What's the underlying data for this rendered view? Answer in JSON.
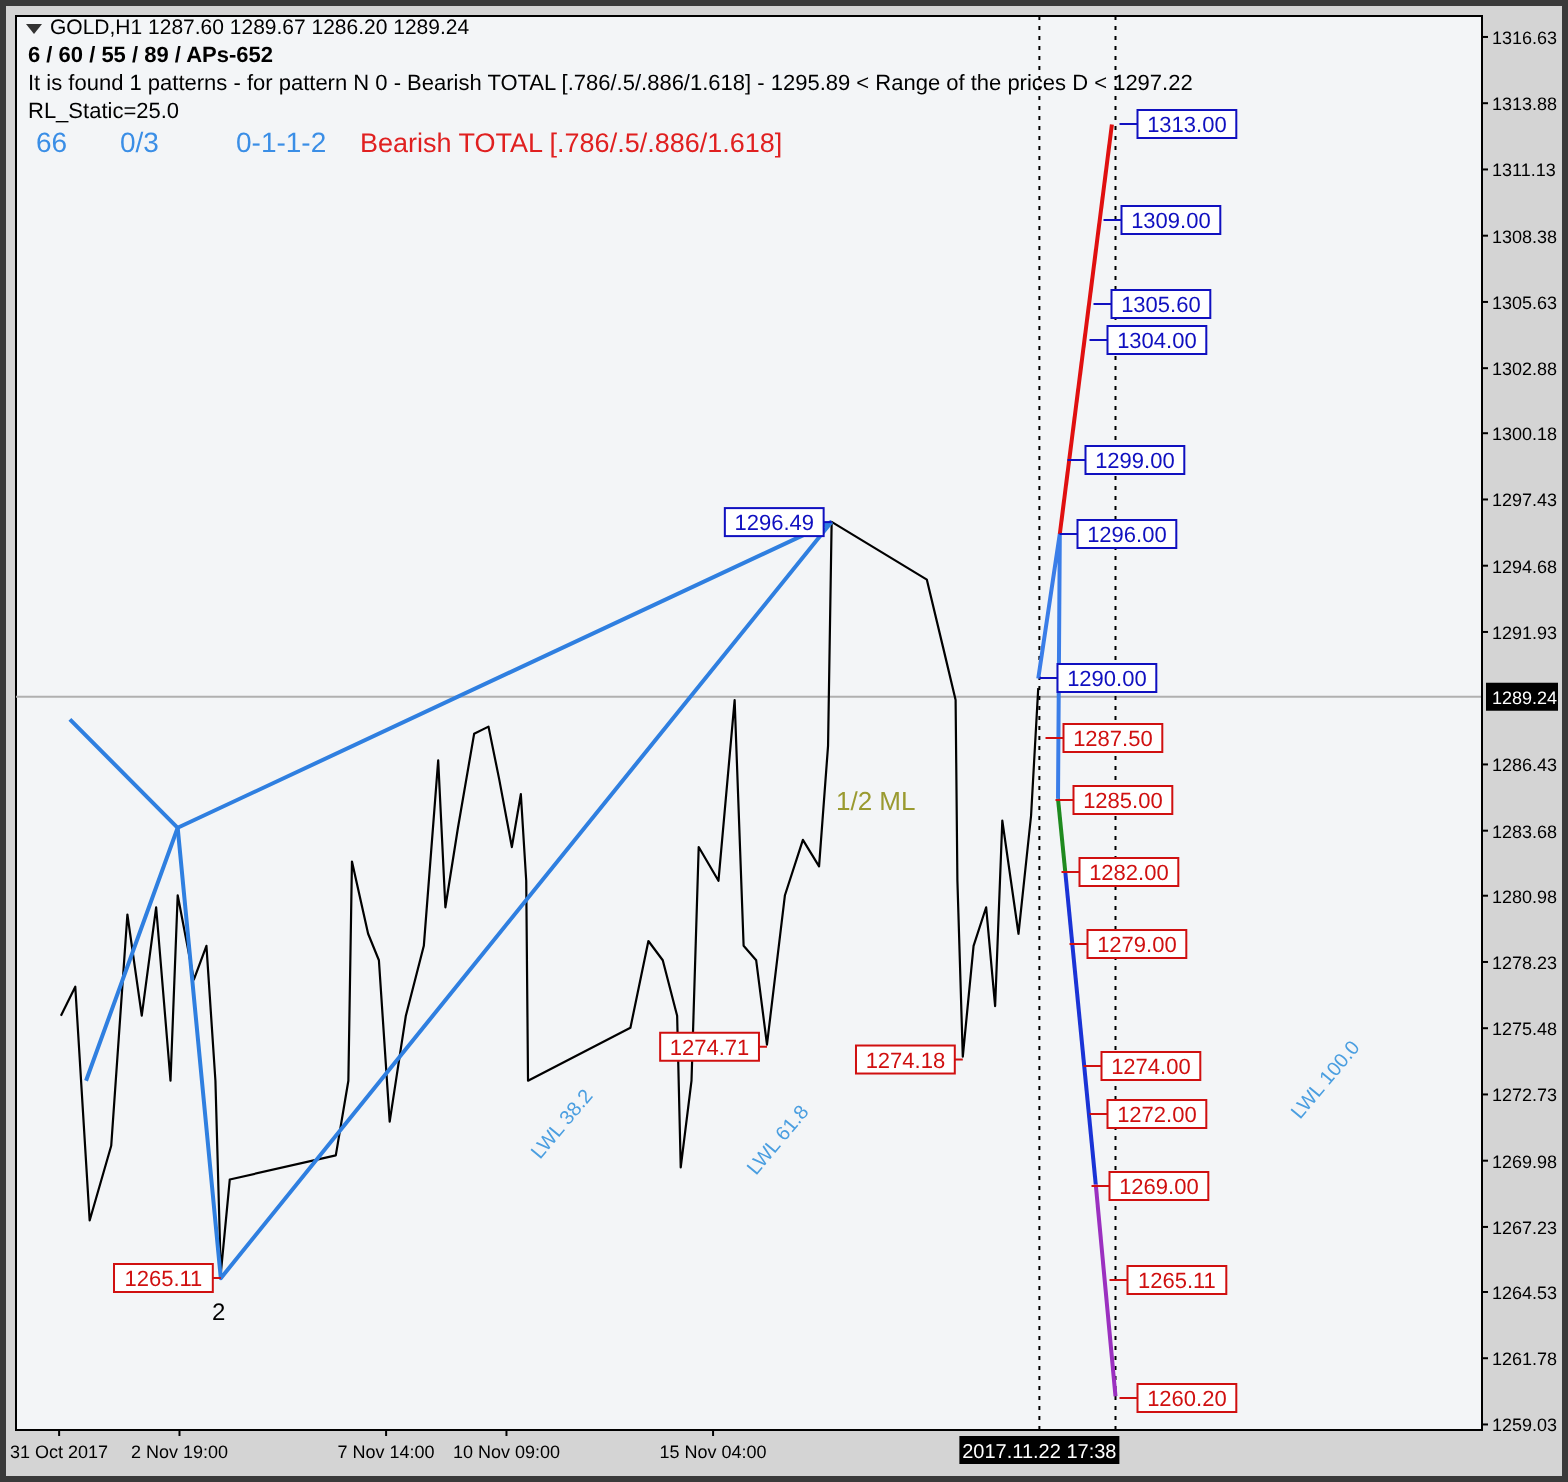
{
  "chart_data": {
    "type": "line",
    "title": "GOLD,H1  1287.60 1289.67 1286.20 1289.24",
    "subtitle": "6 / 60 / 55 / 89 / APs-652",
    "xlim": [
      "2017-10-30T00:00",
      "2017-12-03T00:00"
    ],
    "ylim": [
      1258.8,
      1317.5
    ],
    "xticks": [
      {
        "value": "2017-10-31T00:00",
        "label": "31 Oct 2017"
      },
      {
        "value": "2017-11-02T19:00",
        "label": "2 Nov 19:00"
      },
      {
        "value": "2017-11-07T14:00",
        "label": "7 Nov 14:00"
      },
      {
        "value": "2017-11-10T09:00",
        "label": "10 Nov 09:00"
      },
      {
        "value": "2017-11-15T04:00",
        "label": "15 Nov 04:00"
      }
    ],
    "yticks": [
      1259.03,
      1261.78,
      1264.53,
      1267.23,
      1269.98,
      1272.73,
      1275.48,
      1278.23,
      1280.98,
      1283.68,
      1286.43,
      1291.93,
      1294.68,
      1297.43,
      1300.18,
      1302.88,
      1305.63,
      1308.38,
      1311.13,
      1313.88,
      1316.63
    ],
    "grid": false,
    "series": [
      {
        "color": "#000000",
        "x": [
          "2017-10-31T01:00",
          "2017-10-31T09:00",
          "2017-10-31T17:00",
          "2017-11-01T05:00",
          "2017-11-01T14:00",
          "2017-11-01T22:00",
          "2017-11-02T06:00",
          "2017-11-02T14:00",
          "2017-11-02T18:00",
          "2017-11-03T03:00",
          "2017-11-03T10:00",
          "2017-11-03T15:00",
          "2017-11-03T18:00",
          "2017-11-03T23:00",
          "2017-11-06T10:00",
          "2017-11-06T17:00",
          "2017-11-06T19:00",
          "2017-11-07T04:00",
          "2017-11-07T10:00",
          "2017-11-07T16:00",
          "2017-11-08T01:00",
          "2017-11-08T11:00",
          "2017-11-08T19:00",
          "2017-11-08T23:00",
          "2017-11-09T06:00",
          "2017-11-09T15:00",
          "2017-11-09T23:00",
          "2017-11-10T05:00",
          "2017-11-10T12:00",
          "2017-11-10T17:00",
          "2017-11-10T20:00",
          "2017-11-10T21:00",
          "2017-11-13T06:00",
          "2017-11-13T16:00",
          "2017-11-14T00:00",
          "2017-11-14T08:00",
          "2017-11-14T10:00",
          "2017-11-14T16:00",
          "2017-11-14T20:00",
          "2017-11-15T07:00",
          "2017-11-15T16:00",
          "2017-11-15T21:00",
          "2017-11-16T04:00",
          "2017-11-16T10:00",
          "2017-11-16T20:00",
          "2017-11-17T06:00",
          "2017-11-17T15:00",
          "2017-11-17T20:00",
          "2017-11-17T22:00",
          "2017-11-20T03:00",
          "2017-11-20T12:00",
          "2017-11-20T19:00",
          "2017-11-20T20:00",
          "2017-11-20T23:00",
          "2017-11-21T05:00",
          "2017-11-21T12:00",
          "2017-11-21T17:00",
          "2017-11-21T21:00",
          "2017-11-22T06:00",
          "2017-11-22T13:00",
          "2017-11-22T17:00"
        ],
        "values": [
          1276.0,
          1277.2,
          1267.5,
          1270.6,
          1280.2,
          1276.0,
          1280.5,
          1273.3,
          1281.0,
          1277.5,
          1278.9,
          1273.3,
          1265.3,
          1269.2,
          1270.2,
          1273.3,
          1282.4,
          1279.4,
          1278.3,
          1271.6,
          1276.0,
          1278.9,
          1286.6,
          1280.5,
          1283.8,
          1287.7,
          1288.0,
          1285.8,
          1283.0,
          1285.2,
          1281.6,
          1273.3,
          1275.5,
          1279.1,
          1278.3,
          1276.0,
          1269.7,
          1273.3,
          1283.0,
          1281.6,
          1289.1,
          1278.9,
          1278.3,
          1274.8,
          1281.0,
          1283.3,
          1282.2,
          1287.2,
          1296.5,
          1294.1,
          1291.3,
          1289.1,
          1281.6,
          1274.3,
          1278.9,
          1280.5,
          1276.4,
          1284.1,
          1279.4,
          1284.3,
          1289.6
        ]
      },
      {
        "color": "#2f7fe0",
        "x": [
          "2017-10-31T06:00",
          "2017-11-02T18:00",
          "2017-11-03T18:00",
          "2017-11-17T22:00"
        ],
        "values": [
          1288.3,
          1283.8,
          1265.1,
          1296.5
        ]
      },
      {
        "color": "#2f7fe0",
        "x": [
          "2017-10-31T15:00",
          "2017-11-02T18:00",
          "2017-11-17T22:00"
        ],
        "values": [
          1273.3,
          1283.8,
          1296.5
        ]
      },
      {
        "color": "#3a7de8",
        "x": [
          "2017-11-22T17:00",
          "2017-11-23T05:00",
          "2017-11-23T04:00"
        ],
        "values": [
          1290.0,
          1296.0,
          1285.0
        ]
      },
      {
        "color": "#1f8a1f",
        "x": [
          "2017-11-23T04:00",
          "2017-11-23T08:00"
        ],
        "values": [
          1285.0,
          1282.0
        ]
      },
      {
        "color": "#1a33d6",
        "x": [
          "2017-11-23T08:00",
          "2017-11-24T01:00"
        ],
        "values": [
          1282.0,
          1269.0
        ]
      },
      {
        "color": "#9b30c0",
        "x": [
          "2017-11-24T01:00",
          "2017-11-24T12:00"
        ],
        "values": [
          1269.0,
          1260.2
        ]
      },
      {
        "color": "#e01010",
        "x": [
          "2017-11-23T05:00",
          "2017-11-24T10:00"
        ],
        "values": [
          1296.0,
          1313.0
        ]
      }
    ],
    "ref_lines": [
      {
        "axis": "y",
        "value": 1289.24,
        "label": "1289.24",
        "color": "#b0b0b0"
      },
      {
        "axis": "x",
        "value": "2017-11-22T17:38",
        "label": "2017.11.22 17:38",
        "line_style": "dotted",
        "color": "#000000"
      },
      {
        "axis": "x",
        "value": "2017-11-24T12:00",
        "label": null,
        "line_style": "dotted",
        "color": "#000000"
      }
    ],
    "annotations": [
      "It is found 1 patterns  -  for pattern N 0 - Bearish TOTAL [.786/.5/.886/1.618] - 1295.89 < Range of the prices D < 1297.22",
      "RL_Static=25.0",
      "66",
      "0/3",
      "0-1-1-2",
      "Bearish TOTAL [.786/.5/.886/1.618]",
      "2",
      "1/2 ML",
      "LWL 38.2",
      "LWL 61.8",
      "LWL 100.0",
      "1313.00",
      "1309.00",
      "1305.60",
      "1304.00",
      "1299.00",
      "1296.00",
      "1290.00",
      "1287.50",
      "1285.00",
      "1282.00",
      "1279.00",
      "1274.00",
      "1272.00",
      "1269.00",
      "1265.11",
      "1260.20",
      {
        "text": "1296.49",
        "x": "2017-11-17T22:00",
        "y": 1296.49
      },
      {
        "text": "1274.71",
        "x": "2017-11-16T10:00",
        "y": 1274.71
      },
      {
        "text": "1274.18",
        "x": "2017-11-20T23:00",
        "y": 1274.18
      },
      {
        "text": "1265.11",
        "x": "2017-11-03T18:00",
        "y": 1265.11
      }
    ]
  }
}
